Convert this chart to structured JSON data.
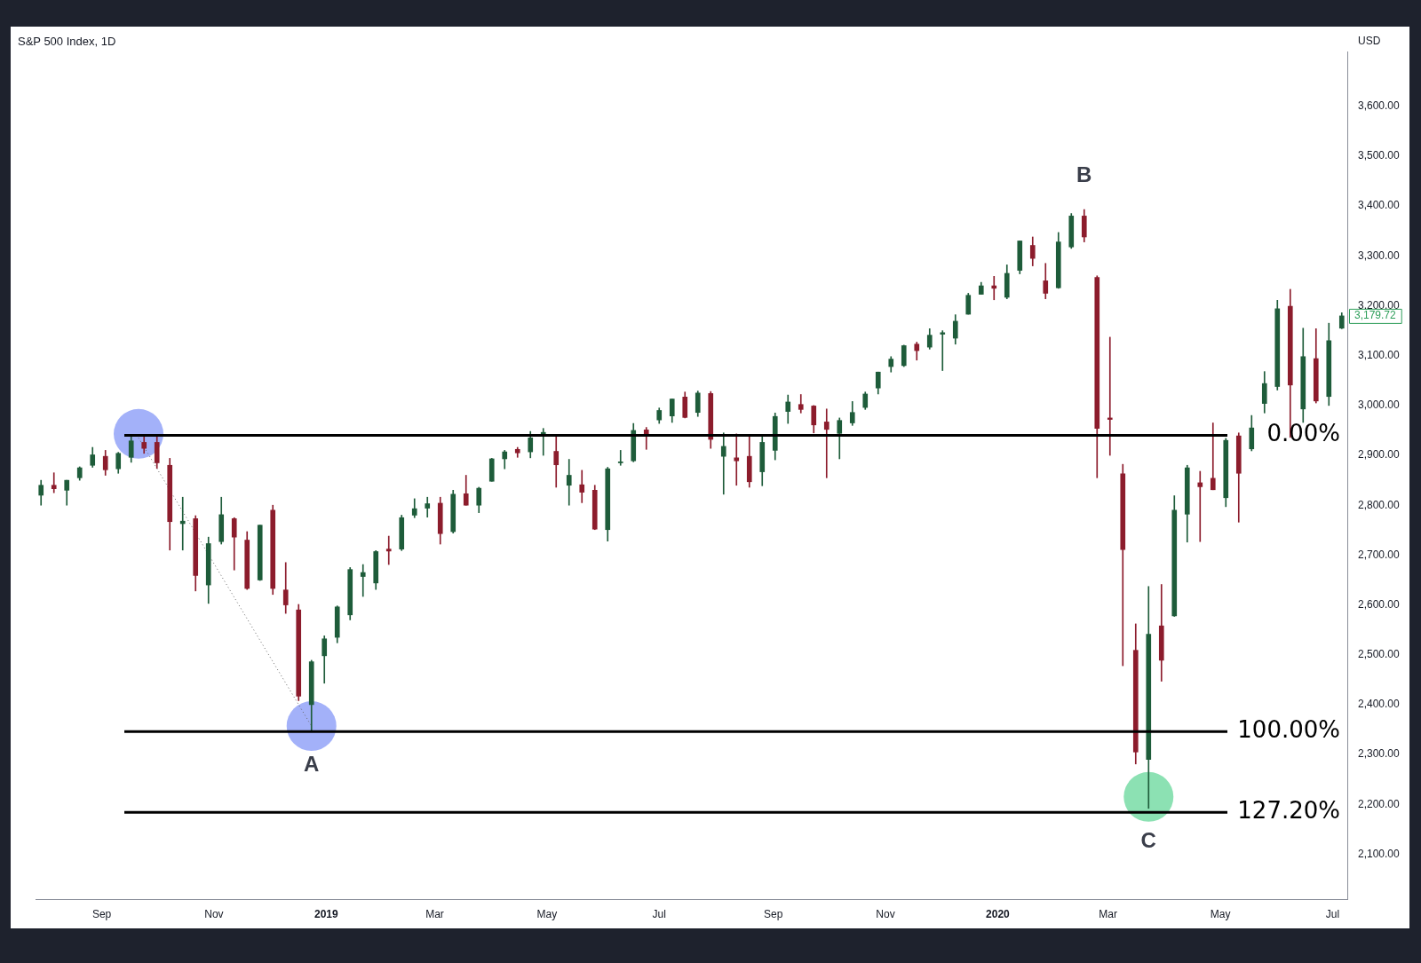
{
  "chart_data": {
    "type": "candlestick",
    "title": "S&P 500 Index, 1D",
    "xlim": [
      "2018-07-27",
      "2020-07-09"
    ],
    "xticks": [
      {
        "value": "2018-09-01",
        "label": "Sep"
      },
      {
        "value": "2018-11-01",
        "label": "Nov"
      },
      {
        "value": "2019-01-01",
        "label": "2019"
      },
      {
        "value": "2019-03-01",
        "label": "Mar"
      },
      {
        "value": "2019-05-01",
        "label": "May"
      },
      {
        "value": "2019-07-01",
        "label": "Jul"
      },
      {
        "value": "2019-09-01",
        "label": "Sep"
      },
      {
        "value": "2019-11-01",
        "label": "Nov"
      },
      {
        "value": "2020-01-01",
        "label": "2020"
      },
      {
        "value": "2020-03-01",
        "label": "Mar"
      },
      {
        "value": "2020-05-01",
        "label": "May"
      },
      {
        "value": "2020-07-01",
        "label": "Jul"
      }
    ],
    "ylim": [
      2010,
      3710
    ],
    "yticks": [
      {
        "value": 2100,
        "label": "2,100.00"
      },
      {
        "value": 2200,
        "label": "2,200.00"
      },
      {
        "value": 2300,
        "label": "2,300.00"
      },
      {
        "value": 2400,
        "label": "2,400.00"
      },
      {
        "value": 2500,
        "label": "2,500.00"
      },
      {
        "value": 2600,
        "label": "2,600.00"
      },
      {
        "value": 2700,
        "label": "2,700.00"
      },
      {
        "value": 2800,
        "label": "2,800.00"
      },
      {
        "value": 2900,
        "label": "2,900.00"
      },
      {
        "value": 3000,
        "label": "3,000.00"
      },
      {
        "value": 3100,
        "label": "3,100.00"
      },
      {
        "value": 3200,
        "label": "3,200.00"
      },
      {
        "value": 3300,
        "label": "3,300.00"
      },
      {
        "value": 3400,
        "label": "3,400.00"
      },
      {
        "value": 3500,
        "label": "3,500.00"
      },
      {
        "value": 3600,
        "label": "3,600.00"
      }
    ],
    "series": [
      {
        "x": [
          "2018-07-30",
          "2018-08-06",
          "2018-08-13",
          "2018-08-20",
          "2018-08-27",
          "2018-09-03",
          "2018-09-10",
          "2018-09-17",
          "2018-09-24",
          "2018-10-01",
          "2018-10-08",
          "2018-10-15",
          "2018-10-22",
          "2018-10-29",
          "2018-11-05",
          "2018-11-12",
          "2018-11-19",
          "2018-11-26",
          "2018-12-03",
          "2018-12-10",
          "2018-12-17",
          "2018-12-24",
          "2018-12-31",
          "2019-01-07",
          "2019-01-14",
          "2019-01-21",
          "2019-01-28",
          "2019-02-04",
          "2019-02-11",
          "2019-02-18",
          "2019-02-25",
          "2019-03-04",
          "2019-03-11",
          "2019-03-18",
          "2019-03-25",
          "2019-04-01",
          "2019-04-08",
          "2019-04-15",
          "2019-04-22",
          "2019-04-29",
          "2019-05-06",
          "2019-05-13",
          "2019-05-20",
          "2019-05-27",
          "2019-06-03",
          "2019-06-10",
          "2019-06-17",
          "2019-06-24",
          "2019-07-01",
          "2019-07-08",
          "2019-07-15",
          "2019-07-22",
          "2019-07-29",
          "2019-08-05",
          "2019-08-12",
          "2019-08-19",
          "2019-08-26",
          "2019-09-02",
          "2019-09-09",
          "2019-09-16",
          "2019-09-23",
          "2019-09-30",
          "2019-10-07",
          "2019-10-14",
          "2019-10-21",
          "2019-10-28",
          "2019-11-04",
          "2019-11-11",
          "2019-11-18",
          "2019-11-25",
          "2019-12-02",
          "2019-12-09",
          "2019-12-16",
          "2019-12-23",
          "2019-12-30",
          "2020-01-06",
          "2020-01-13",
          "2020-01-20",
          "2020-01-27",
          "2020-02-03",
          "2020-02-10",
          "2020-02-17",
          "2020-02-24",
          "2020-03-02",
          "2020-03-09",
          "2020-03-16",
          "2020-03-23",
          "2020-03-30",
          "2020-04-06",
          "2020-04-13",
          "2020-04-20",
          "2020-04-27",
          "2020-05-04",
          "2020-05-11",
          "2020-05-18",
          "2020-05-25",
          "2020-06-01",
          "2020-06-08",
          "2020-06-15",
          "2020-06-22",
          "2020-06-29",
          "2020-07-06"
        ],
        "ohlc": [
          [
            2820,
            2850,
            2800,
            2840
          ],
          [
            2840,
            2865,
            2825,
            2833
          ],
          [
            2830,
            2850,
            2800,
            2850
          ],
          [
            2855,
            2877,
            2850,
            2875
          ],
          [
            2880,
            2916,
            2876,
            2901
          ],
          [
            2898,
            2910,
            2860,
            2871
          ],
          [
            2873,
            2906,
            2864,
            2904
          ],
          [
            2896,
            2941,
            2886,
            2929
          ],
          [
            2926,
            2939,
            2904,
            2914
          ],
          [
            2926,
            2939,
            2874,
            2885
          ],
          [
            2880,
            2894,
            2710,
            2767
          ],
          [
            2763,
            2816,
            2710,
            2768
          ],
          [
            2773,
            2779,
            2628,
            2659
          ],
          [
            2640,
            2736,
            2603,
            2723
          ],
          [
            2727,
            2816,
            2722,
            2781
          ],
          [
            2773,
            2775,
            2670,
            2736
          ],
          [
            2730,
            2747,
            2631,
            2633
          ],
          [
            2650,
            2760,
            2649,
            2760
          ],
          [
            2790,
            2800,
            2621,
            2633
          ],
          [
            2630,
            2685,
            2583,
            2600
          ],
          [
            2590,
            2601,
            2408,
            2417
          ],
          [
            2400,
            2489,
            2346,
            2486
          ],
          [
            2498,
            2538,
            2443,
            2532
          ],
          [
            2535,
            2598,
            2524,
            2596
          ],
          [
            2580,
            2675,
            2570,
            2671
          ],
          [
            2657,
            2681,
            2617,
            2665
          ],
          [
            2644,
            2709,
            2631,
            2707
          ],
          [
            2712,
            2738,
            2681,
            2708
          ],
          [
            2712,
            2780,
            2709,
            2775
          ],
          [
            2780,
            2813,
            2775,
            2793
          ],
          [
            2794,
            2816,
            2776,
            2803
          ],
          [
            2804,
            2816,
            2722,
            2743
          ],
          [
            2747,
            2830,
            2744,
            2822
          ],
          [
            2823,
            2860,
            2800,
            2800
          ],
          [
            2800,
            2836,
            2785,
            2834
          ],
          [
            2848,
            2894,
            2848,
            2893
          ],
          [
            2893,
            2910,
            2873,
            2907
          ],
          [
            2912,
            2916,
            2896,
            2905
          ],
          [
            2907,
            2948,
            2895,
            2935
          ],
          [
            2941,
            2954,
            2900,
            2946
          ],
          [
            2908,
            2937,
            2836,
            2881
          ],
          [
            2840,
            2892,
            2800,
            2860
          ],
          [
            2841,
            2870,
            2805,
            2826
          ],
          [
            2830,
            2840,
            2751,
            2752
          ],
          [
            2751,
            2876,
            2728,
            2873
          ],
          [
            2885,
            2910,
            2880,
            2887
          ],
          [
            2889,
            2964,
            2887,
            2950
          ],
          [
            2951,
            2956,
            2912,
            2942
          ],
          [
            2971,
            2995,
            2964,
            2990
          ],
          [
            2979,
            3013,
            2966,
            3013
          ],
          [
            3017,
            3027,
            2975,
            2976
          ],
          [
            2986,
            3029,
            2978,
            3025
          ],
          [
            3024,
            3028,
            2914,
            2932
          ],
          [
            2898,
            2945,
            2822,
            2918
          ],
          [
            2895,
            2943,
            2840,
            2889
          ],
          [
            2898,
            2940,
            2836,
            2847
          ],
          [
            2867,
            2940,
            2839,
            2926
          ],
          [
            2910,
            2985,
            2891,
            2978
          ],
          [
            2988,
            3021,
            2964,
            3007
          ],
          [
            3002,
            3022,
            2985,
            2992
          ],
          [
            2999,
            3000,
            2945,
            2961
          ],
          [
            2967,
            2993,
            2855,
            2952
          ],
          [
            2944,
            2975,
            2893,
            2970
          ],
          [
            2965,
            3008,
            2960,
            2986
          ],
          [
            2996,
            3027,
            2992,
            3023
          ],
          [
            3035,
            3067,
            3023,
            3067
          ],
          [
            3078,
            3098,
            3067,
            3093
          ],
          [
            3080,
            3121,
            3078,
            3120
          ],
          [
            3123,
            3127,
            3091,
            3110
          ],
          [
            3117,
            3154,
            3113,
            3141
          ],
          [
            3143,
            3150,
            3070,
            3146
          ],
          [
            3135,
            3182,
            3123,
            3169
          ],
          [
            3183,
            3225,
            3183,
            3221
          ],
          [
            3223,
            3247,
            3223,
            3240
          ],
          [
            3240,
            3259,
            3212,
            3235
          ],
          [
            3217,
            3282,
            3214,
            3265
          ],
          [
            3271,
            3330,
            3264,
            3330
          ],
          [
            3321,
            3338,
            3280,
            3295
          ],
          [
            3250,
            3285,
            3214,
            3225
          ],
          [
            3236,
            3347,
            3235,
            3328
          ],
          [
            3318,
            3385,
            3315,
            3380
          ],
          [
            3380,
            3393,
            3328,
            3338
          ],
          [
            3257,
            3260,
            2855,
            2954
          ],
          [
            2975,
            3137,
            2900,
            2972
          ],
          [
            2863,
            2882,
            2478,
            2711
          ],
          [
            2509,
            2562,
            2281,
            2305
          ],
          [
            2290,
            2637,
            2192,
            2541
          ],
          [
            2558,
            2641,
            2447,
            2489
          ],
          [
            2578,
            2819,
            2577,
            2790
          ],
          [
            2782,
            2880,
            2726,
            2875
          ],
          [
            2845,
            2868,
            2727,
            2837
          ],
          [
            2854,
            2965,
            2831,
            2831
          ],
          [
            2815,
            2934,
            2797,
            2930
          ],
          [
            2939,
            2945,
            2766,
            2864
          ],
          [
            2913,
            2980,
            2909,
            2955
          ],
          [
            3004,
            3068,
            2985,
            3044
          ],
          [
            3038,
            3211,
            3031,
            3194
          ],
          [
            3199,
            3233,
            2936,
            3041
          ],
          [
            2993,
            3155,
            2966,
            3098
          ],
          [
            3094,
            3154,
            3005,
            3009
          ],
          [
            3018,
            3165,
            3000,
            3130
          ],
          [
            3155,
            3186,
            3154,
            3179.72
          ]
        ],
        "colors": [
          "#1e5c3a",
          "#8c1c2c",
          "#1e5c3a",
          "#1e5c3a",
          "#1e5c3a",
          "#8c1c2c",
          "#1e5c3a",
          "#1e5c3a",
          "#8c1c2c",
          "#8c1c2c",
          "#8c1c2c",
          "#1e5c3a",
          "#8c1c2c",
          "#1e5c3a",
          "#1e5c3a",
          "#8c1c2c",
          "#8c1c2c",
          "#1e5c3a",
          "#8c1c2c",
          "#8c1c2c",
          "#8c1c2c",
          "#1e5c3a",
          "#1e5c3a",
          "#1e5c3a",
          "#1e5c3a",
          "#1e5c3a",
          "#1e5c3a",
          "#8c1c2c",
          "#1e5c3a",
          "#1e5c3a",
          "#1e5c3a",
          "#8c1c2c",
          "#1e5c3a",
          "#8c1c2c",
          "#1e5c3a",
          "#1e5c3a",
          "#1e5c3a",
          "#8c1c2c",
          "#1e5c3a",
          "#1e5c3a",
          "#8c1c2c",
          "#1e5c3a",
          "#8c1c2c",
          "#8c1c2c",
          "#1e5c3a",
          "#1e5c3a",
          "#1e5c3a",
          "#8c1c2c",
          "#1e5c3a",
          "#1e5c3a",
          "#8c1c2c",
          "#1e5c3a",
          "#8c1c2c",
          "#1e5c3a",
          "#8c1c2c",
          "#8c1c2c",
          "#1e5c3a",
          "#1e5c3a",
          "#1e5c3a",
          "#8c1c2c",
          "#8c1c2c",
          "#8c1c2c",
          "#1e5c3a",
          "#1e5c3a",
          "#1e5c3a",
          "#1e5c3a",
          "#1e5c3a",
          "#1e5c3a",
          "#8c1c2c",
          "#1e5c3a",
          "#1e5c3a",
          "#1e5c3a",
          "#1e5c3a",
          "#1e5c3a",
          "#8c1c2c",
          "#1e5c3a",
          "#1e5c3a",
          "#8c1c2c",
          "#8c1c2c",
          "#1e5c3a",
          "#1e5c3a",
          "#8c1c2c",
          "#8c1c2c",
          "#8c1c2c",
          "#8c1c2c",
          "#8c1c2c",
          "#1e5c3a",
          "#8c1c2c",
          "#1e5c3a",
          "#1e5c3a",
          "#8c1c2c",
          "#8c1c2c",
          "#1e5c3a",
          "#8c1c2c",
          "#1e5c3a",
          "#1e5c3a",
          "#1e5c3a",
          "#8c1c2c",
          "#1e5c3a",
          "#8c1c2c",
          "#1e5c3a",
          "#1e5c3a"
        ]
      },
      {
        "type": "line",
        "x": [
          "2018-09-21",
          "2018-12-24"
        ],
        "values": [
          2935,
          2357
        ],
        "color": "#666666",
        "line_style": "dotted"
      },
      {
        "type": "scatter",
        "x": [
          "2018-09-21",
          "2018-12-24",
          "2020-03-23"
        ],
        "values": [
          2943,
          2357,
          2215
        ],
        "colors": [
          "#8c9ef8",
          "#8c9ef8",
          "#6fd9a0"
        ],
        "marker": "circle"
      }
    ],
    "ref_lines": [
      {
        "axis": "y",
        "value": 2940,
        "color": "#000000"
      },
      {
        "axis": "y",
        "value": 2346,
        "color": "#000000"
      },
      {
        "axis": "y",
        "value": 2184,
        "color": "#000000"
      }
    ],
    "annotations": [
      "USD",
      "3,179.72",
      "0.00%",
      "100.00%",
      "127.20%",
      {
        "text": "A",
        "x": "2018-12-24",
        "y": 2346
      },
      {
        "text": "B",
        "x": "2020-02-17",
        "y": 3393
      },
      {
        "text": "C",
        "x": "2020-03-23",
        "y": 2192
      }
    ],
    "legend": false,
    "grid": false
  }
}
